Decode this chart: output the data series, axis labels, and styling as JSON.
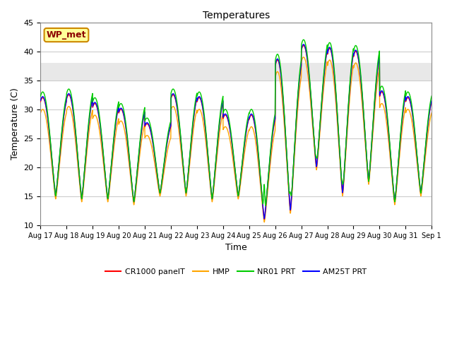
{
  "title": "Temperatures",
  "xlabel": "Time",
  "ylabel": "Temperature (C)",
  "ylim": [
    10,
    45
  ],
  "tick_labels": [
    "Aug 17",
    "Aug 18",
    "Aug 19",
    "Aug 20",
    "Aug 21",
    "Aug 22",
    "Aug 23",
    "Aug 24",
    "Aug 25",
    "Aug 26",
    "Aug 27",
    "Aug 28",
    "Aug 29",
    "Aug 30",
    "Aug 31",
    "Sep 1"
  ],
  "legend_labels": [
    "CR1000 panelT",
    "HMP",
    "NR01 PRT",
    "AM25T PRT"
  ],
  "legend_colors": [
    "#ff0000",
    "#ffa500",
    "#00cc00",
    "#0000ff"
  ],
  "annotation_text": "WP_met",
  "annotation_facecolor": "#ffff99",
  "annotation_edgecolor": "#cc8800",
  "shaded_band": [
    35,
    38
  ],
  "shaded_color": "#e8e8e8",
  "bg_color": "#ffffff",
  "daily_peaks": [
    32.0,
    32.5,
    31.0,
    30.0,
    27.5,
    32.5,
    32.0,
    29.0,
    29.0,
    38.5,
    41.0,
    40.5,
    40.0,
    33.0,
    32.0
  ],
  "daily_mins": [
    15.0,
    14.5,
    14.5,
    14.0,
    15.5,
    15.5,
    14.5,
    15.0,
    11.0,
    12.5,
    20.0,
    15.5,
    17.5,
    14.0,
    15.5
  ],
  "line_width": 1.0,
  "figsize": [
    6.4,
    4.8
  ],
  "dpi": 100
}
